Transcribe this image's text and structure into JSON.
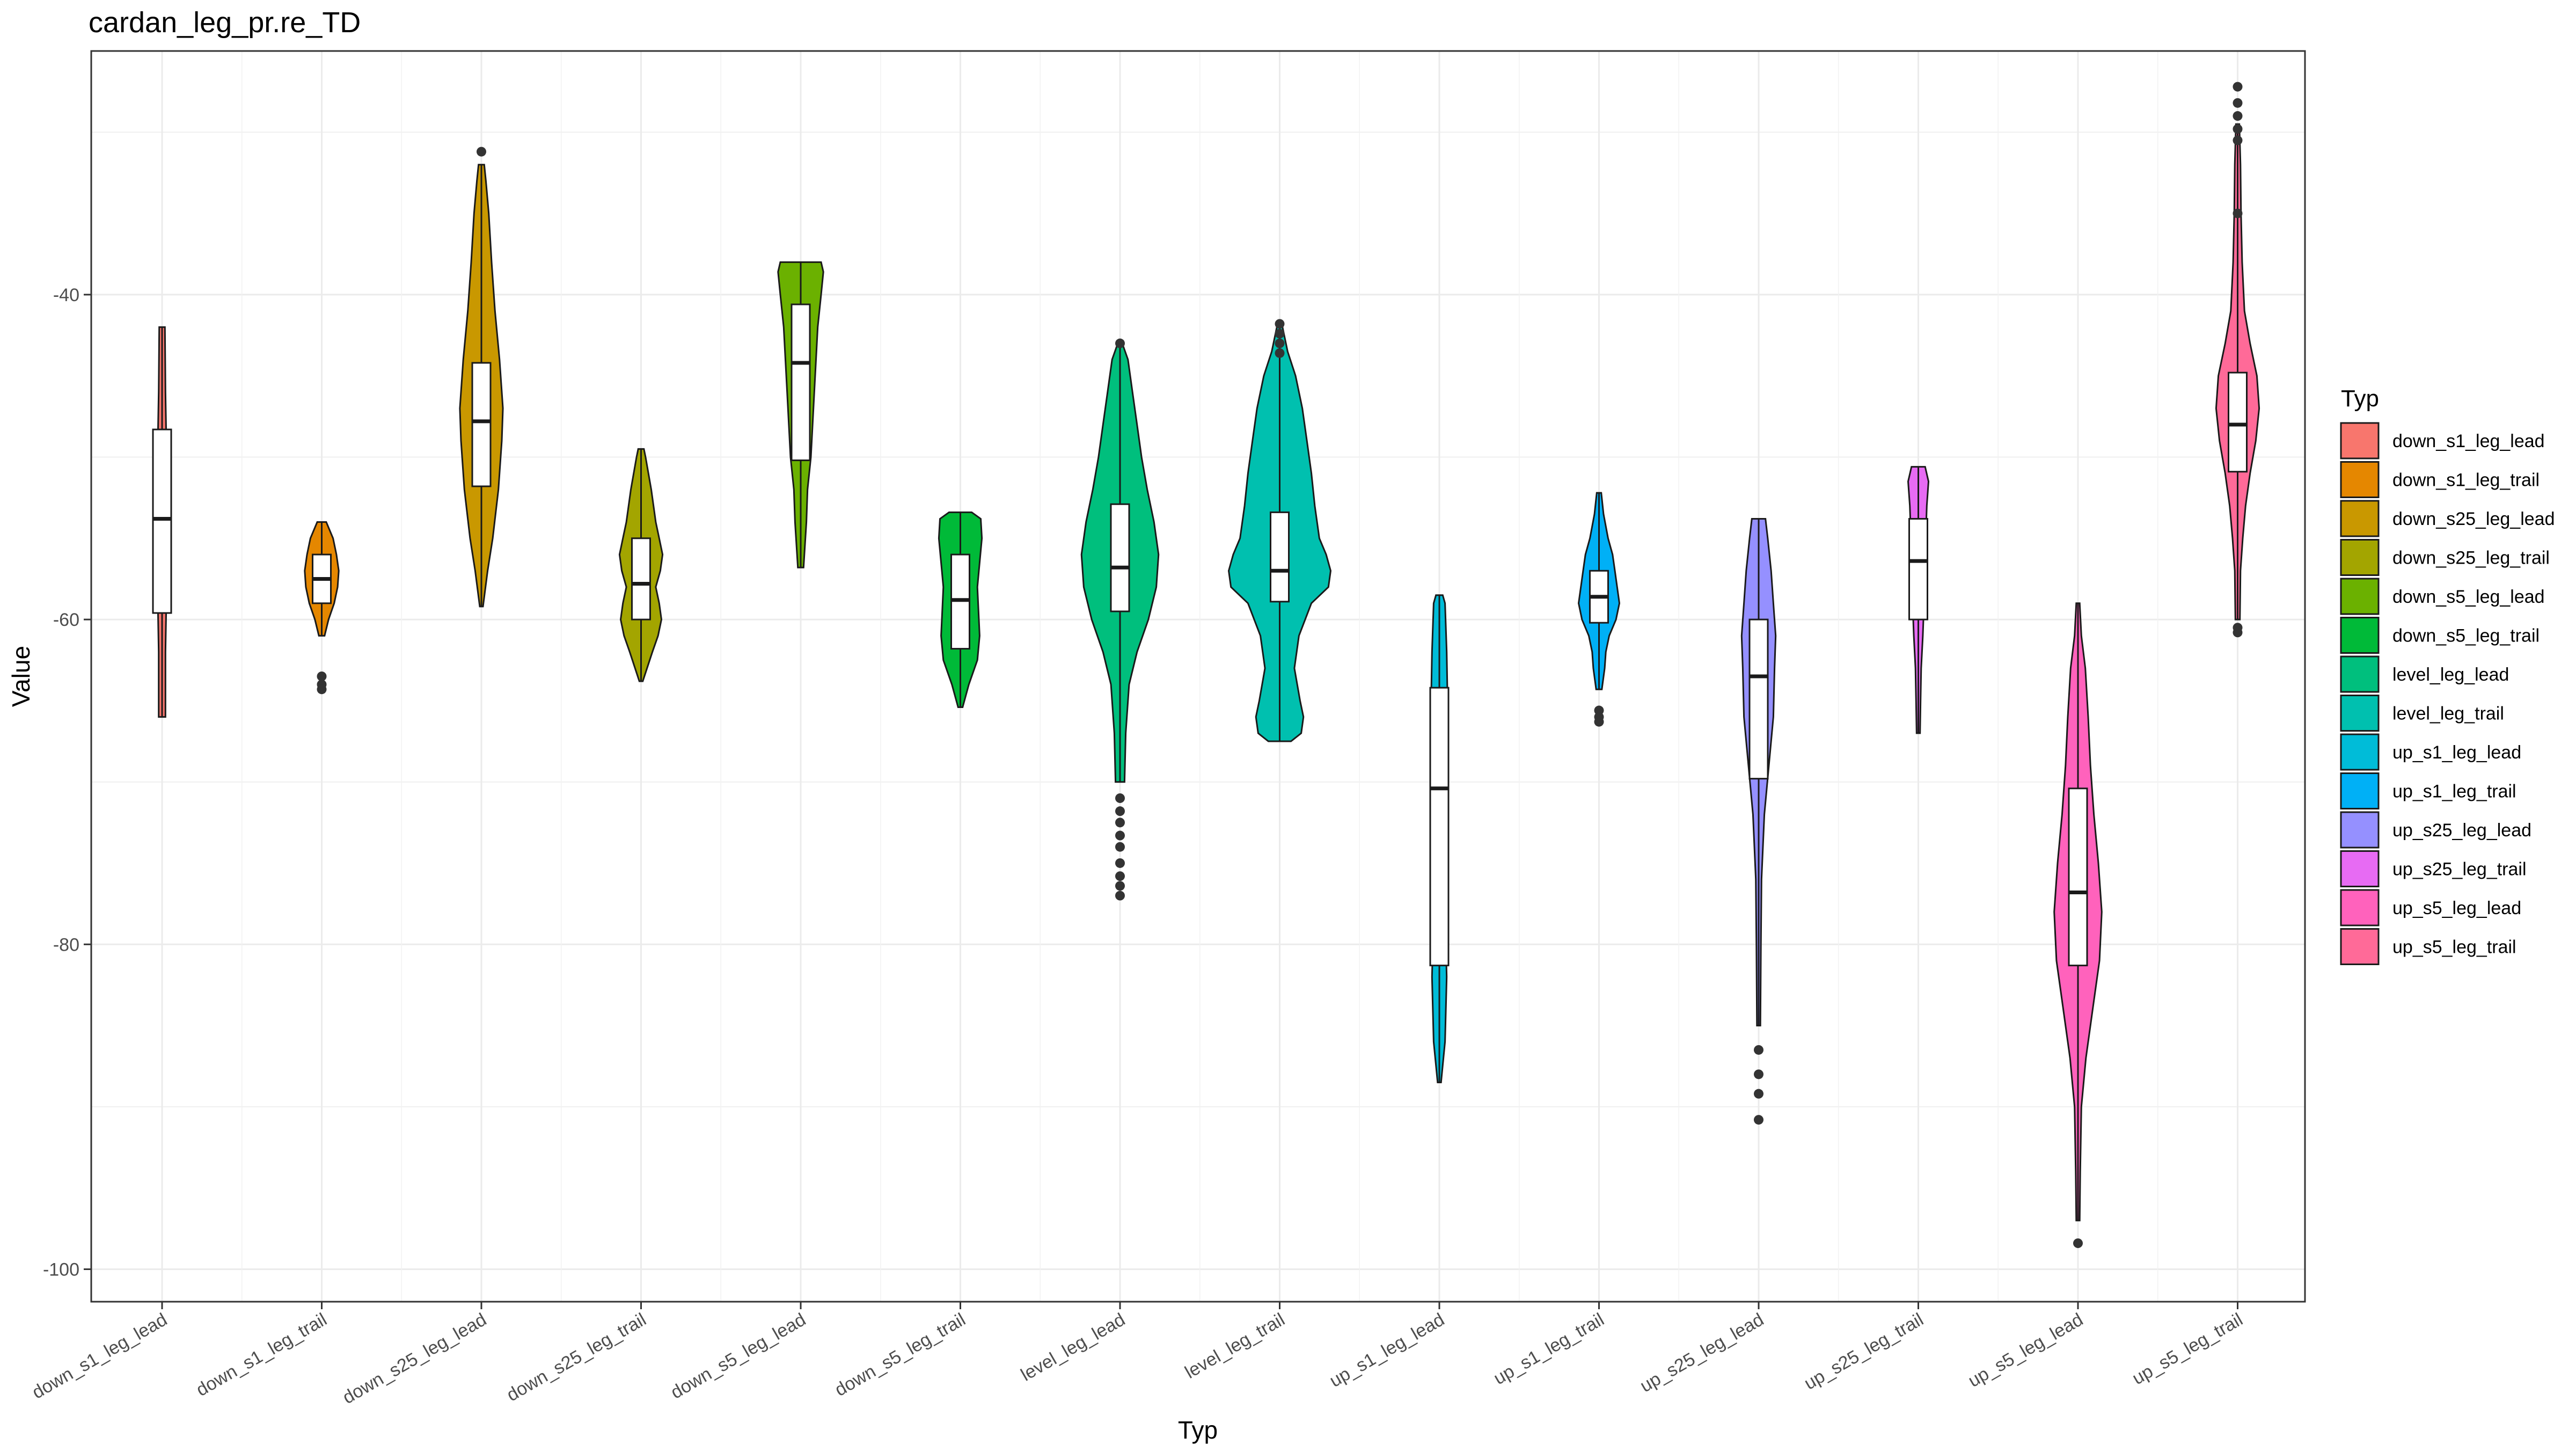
{
  "chart_data": {
    "type": "violin",
    "title": "cardan_leg_pr.re_TD",
    "xlabel": "Typ",
    "ylabel": "Value",
    "ylim": [
      -102,
      -25
    ],
    "yticks": [
      -100,
      -80,
      -60,
      -40
    ],
    "grid": true,
    "legend": {
      "title": "Typ",
      "position": "right"
    },
    "categories": [
      "down_s1_leg_lead",
      "down_s1_leg_trail",
      "down_s25_leg_lead",
      "down_s25_leg_trail",
      "down_s5_leg_lead",
      "down_s5_leg_trail",
      "level_leg_lead",
      "level_leg_trail",
      "up_s1_leg_lead",
      "up_s1_leg_trail",
      "up_s25_leg_lead",
      "up_s25_leg_trail",
      "up_s5_leg_lead",
      "up_s5_leg_trail"
    ],
    "colors": [
      "#F8766D",
      "#E58700",
      "#C99800",
      "#A3A500",
      "#6BB100",
      "#00BA38",
      "#00BF7D",
      "#00C0AF",
      "#00BCD8",
      "#00B0F6",
      "#9590FF",
      "#E76BF3",
      "#FF62BC",
      "#FF6A98"
    ],
    "series": [
      {
        "q1": -59.6,
        "median": -53.8,
        "q3": -48.3,
        "min": -66.0,
        "max": -42.0,
        "density": [
          [
            -66.0,
            0.6
          ],
          [
            -62,
            0.6
          ],
          [
            -58,
            0.8
          ],
          [
            -54,
            1.0
          ],
          [
            -50,
            0.8
          ],
          [
            -46,
            0.6
          ],
          [
            -42.0,
            0.5
          ]
        ],
        "outliers": []
      },
      {
        "q1": -59.0,
        "median": -57.5,
        "q3": -56.0,
        "min": -61.0,
        "max": -54.0,
        "density": [
          [
            -61.0,
            0.5
          ],
          [
            -60,
            1.2
          ],
          [
            -59,
            2.2
          ],
          [
            -58,
            2.8
          ],
          [
            -57,
            3.0
          ],
          [
            -56,
            2.6
          ],
          [
            -55,
            2.0
          ],
          [
            -54,
            0.8
          ]
        ],
        "outliers": [
          -63.5,
          -64.0,
          -64.3
        ]
      },
      {
        "q1": -51.8,
        "median": -47.8,
        "q3": -44.2,
        "min": -59.2,
        "max": -32.0,
        "density": [
          [
            -59.2,
            0.2
          ],
          [
            -57,
            1.1
          ],
          [
            -55,
            2.0
          ],
          [
            -52,
            3.0
          ],
          [
            -49,
            3.6
          ],
          [
            -47,
            3.8
          ],
          [
            -44,
            3.2
          ],
          [
            -41,
            2.4
          ],
          [
            -38,
            1.8
          ],
          [
            -35,
            1.3
          ],
          [
            -33,
            0.8
          ],
          [
            -32,
            0.5
          ]
        ],
        "outliers": [
          -31.2
        ]
      },
      {
        "q1": -60.0,
        "median": -57.8,
        "q3": -55.0,
        "min": -63.8,
        "max": -49.5,
        "density": [
          [
            -63.8,
            0.3
          ],
          [
            -62,
            2.0
          ],
          [
            -61,
            3.0
          ],
          [
            -60,
            3.6
          ],
          [
            -59,
            3.2
          ],
          [
            -58,
            2.6
          ],
          [
            -57,
            3.4
          ],
          [
            -56,
            3.8
          ],
          [
            -55,
            3.2
          ],
          [
            -54,
            2.6
          ],
          [
            -52,
            1.8
          ],
          [
            -50,
            0.8
          ],
          [
            -49.5,
            0.5
          ]
        ],
        "outliers": []
      },
      {
        "q1": -50.2,
        "median": -44.2,
        "q3": -40.6,
        "min": -56.8,
        "max": -38.0,
        "density": [
          [
            -56.8,
            0.5
          ],
          [
            -54,
            1.0
          ],
          [
            -52,
            1.2
          ],
          [
            -50,
            1.8
          ],
          [
            -46,
            2.4
          ],
          [
            -42,
            3.0
          ],
          [
            -40,
            3.6
          ],
          [
            -38.6,
            4.0
          ],
          [
            -38.0,
            3.6
          ]
        ],
        "outliers": []
      },
      {
        "q1": -61.8,
        "median": -58.8,
        "q3": -56.0,
        "min": -65.4,
        "max": -53.4,
        "density": [
          [
            -65.4,
            0.4
          ],
          [
            -64,
            1.5
          ],
          [
            -62.5,
            3.0
          ],
          [
            -61,
            3.4
          ],
          [
            -59.5,
            3.2
          ],
          [
            -58,
            3.0
          ],
          [
            -56.5,
            3.4
          ],
          [
            -55,
            3.8
          ],
          [
            -53.8,
            3.6
          ],
          [
            -53.4,
            2.0
          ]
        ],
        "outliers": []
      },
      {
        "q1": -59.5,
        "median": -56.8,
        "q3": -52.9,
        "min": -70.0,
        "max": -43.0,
        "density": [
          [
            -70.0,
            0.8
          ],
          [
            -67,
            1.0
          ],
          [
            -64,
            1.6
          ],
          [
            -62,
            3.0
          ],
          [
            -60,
            5.0
          ],
          [
            -58,
            6.4
          ],
          [
            -56,
            6.8
          ],
          [
            -54,
            6.0
          ],
          [
            -52,
            4.8
          ],
          [
            -50,
            3.8
          ],
          [
            -48,
            3.0
          ],
          [
            -46,
            2.2
          ],
          [
            -44,
            1.4
          ],
          [
            -43,
            0.4
          ]
        ],
        "outliers": [
          -71.0,
          -71.8,
          -72.5,
          -73.3,
          -74.0,
          -75.0,
          -75.8,
          -76.4,
          -77.0,
          -43.0
        ]
      },
      {
        "q1": -58.9,
        "median": -57.0,
        "q3": -53.4,
        "min": -67.5,
        "max": -42.0,
        "density": [
          [
            -67.5,
            2.0
          ],
          [
            -67,
            3.8
          ],
          [
            -66,
            4.2
          ],
          [
            -65,
            3.6
          ],
          [
            -63,
            2.6
          ],
          [
            -61,
            3.4
          ],
          [
            -59,
            5.6
          ],
          [
            -58,
            8.6
          ],
          [
            -57,
            9.0
          ],
          [
            -56,
            8.2
          ],
          [
            -55,
            7.0
          ],
          [
            -53,
            6.2
          ],
          [
            -51,
            5.6
          ],
          [
            -49,
            4.8
          ],
          [
            -47,
            4.0
          ],
          [
            -45,
            2.8
          ],
          [
            -43.5,
            1.4
          ],
          [
            -42,
            0.5
          ]
        ],
        "outliers": [
          -41.8,
          -42.4,
          -43.0,
          -43.6
        ]
      },
      {
        "q1": -81.3,
        "median": -70.4,
        "q3": -64.2,
        "min": -88.5,
        "max": -58.5,
        "density": [
          [
            -88.5,
            0.3
          ],
          [
            -86,
            1.0
          ],
          [
            -82,
            1.3
          ],
          [
            -78,
            1.0
          ],
          [
            -74,
            1.2
          ],
          [
            -70,
            1.4
          ],
          [
            -66,
            1.5
          ],
          [
            -62,
            1.3
          ],
          [
            -59,
            1.0
          ],
          [
            -58.5,
            0.6
          ]
        ],
        "outliers": []
      },
      {
        "q1": -60.2,
        "median": -58.6,
        "q3": -57.0,
        "min": -64.3,
        "max": -52.2,
        "density": [
          [
            -64.3,
            0.5
          ],
          [
            -63,
            1.0
          ],
          [
            -62,
            1.2
          ],
          [
            -61,
            1.8
          ],
          [
            -60,
            3.0
          ],
          [
            -59,
            3.6
          ],
          [
            -58,
            3.2
          ],
          [
            -57,
            2.8
          ],
          [
            -56,
            2.4
          ],
          [
            -55,
            1.6
          ],
          [
            -53.5,
            0.8
          ],
          [
            -52.2,
            0.4
          ]
        ],
        "outliers": [
          -65.6,
          -66.0,
          -66.3
        ]
      },
      {
        "q1": -69.8,
        "median": -63.5,
        "q3": -60.0,
        "min": -85.0,
        "max": -53.8,
        "density": [
          [
            -85.0,
            0.3
          ],
          [
            -80,
            0.4
          ],
          [
            -76,
            0.5
          ],
          [
            -72,
            1.0
          ],
          [
            -69,
            1.8
          ],
          [
            -66,
            2.6
          ],
          [
            -63,
            2.8
          ],
          [
            -61,
            3.0
          ],
          [
            -59,
            2.6
          ],
          [
            -57,
            2.2
          ],
          [
            -55,
            1.6
          ],
          [
            -53.8,
            1.2
          ]
        ],
        "outliers": [
          -86.5,
          -88.0,
          -89.2,
          -90.8
        ]
      },
      {
        "q1": -60.0,
        "median": -56.4,
        "q3": -53.8,
        "min": -67.0,
        "max": -50.6,
        "density": [
          [
            -67.0,
            0.3
          ],
          [
            -65,
            0.4
          ],
          [
            -63,
            0.5
          ],
          [
            -61,
            0.8
          ],
          [
            -59,
            1.0
          ],
          [
            -57,
            1.2
          ],
          [
            -55,
            1.3
          ],
          [
            -53,
            1.5
          ],
          [
            -51.5,
            1.8
          ],
          [
            -50.6,
            1.2
          ]
        ],
        "outliers": []
      },
      {
        "q1": -81.3,
        "median": -76.8,
        "q3": -70.4,
        "min": -97.0,
        "max": -59.0,
        "density": [
          [
            -97.0,
            0.3
          ],
          [
            -94,
            0.4
          ],
          [
            -90,
            0.6
          ],
          [
            -87,
            1.4
          ],
          [
            -84,
            2.6
          ],
          [
            -81,
            3.8
          ],
          [
            -78,
            4.2
          ],
          [
            -75,
            3.6
          ],
          [
            -72,
            2.8
          ],
          [
            -69,
            2.2
          ],
          [
            -66,
            1.8
          ],
          [
            -63,
            1.3
          ],
          [
            -61,
            0.6
          ],
          [
            -59,
            0.3
          ]
        ],
        "outliers": [
          -98.4
        ]
      },
      {
        "q1": -50.9,
        "median": -48.0,
        "q3": -44.8,
        "min": -60.0,
        "max": -29.5,
        "density": [
          [
            -60.0,
            0.4
          ],
          [
            -57,
            0.5
          ],
          [
            -55,
            0.9
          ],
          [
            -53,
            1.4
          ],
          [
            -51,
            2.2
          ],
          [
            -49,
            3.2
          ],
          [
            -47,
            3.8
          ],
          [
            -45,
            3.4
          ],
          [
            -43,
            2.2
          ],
          [
            -41,
            1.2
          ],
          [
            -38,
            0.8
          ],
          [
            -35,
            0.6
          ],
          [
            -32,
            0.5
          ],
          [
            -29.5,
            0.3
          ]
        ],
        "outliers": [
          -60.5,
          -60.8,
          -35.0,
          -30.5,
          -29.8,
          -29.0,
          -28.2,
          -27.2
        ]
      }
    ]
  }
}
